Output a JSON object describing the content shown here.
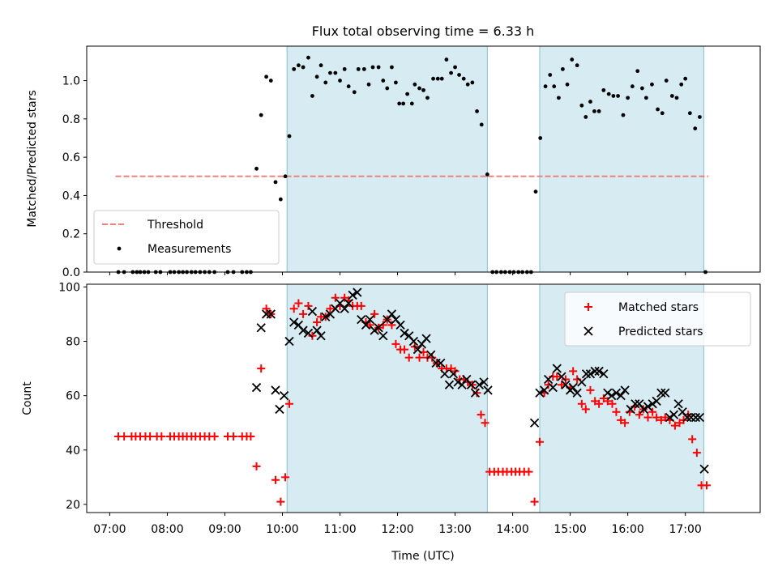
{
  "chart_data": {
    "title": "Flux total observing time = 6.33 h",
    "xlabel": "Time (UTC)",
    "x_unit": "hours UTC (decimal)",
    "xlim": [
      6.6,
      18.3
    ],
    "xticks": [
      7,
      8,
      9,
      10,
      11,
      12,
      13,
      14,
      15,
      16,
      17
    ],
    "xtick_labels": [
      "07:00",
      "08:00",
      "09:00",
      "10:00",
      "11:00",
      "12:00",
      "13:00",
      "14:00",
      "15:00",
      "16:00",
      "17:00"
    ],
    "colors": {
      "threshold": "#f08080",
      "measurements": "#000000",
      "matched": "#ff0000",
      "predicted": "#000000",
      "span_fill": "#add8e6",
      "span_edge": "#87bfd0"
    },
    "observing_windows": [
      [
        10.08,
        13.56
      ],
      [
        14.47,
        17.32
      ]
    ],
    "top": {
      "type": "scatter",
      "ylabel": "Matched/Predicted stars",
      "ylim": [
        0,
        1.18
      ],
      "yticks": [
        0.0,
        0.2,
        0.4,
        0.6,
        0.8,
        1.0
      ],
      "ytick_labels": [
        "0.0",
        "0.2",
        "0.4",
        "0.6",
        "0.8",
        "1.0"
      ],
      "threshold": {
        "label": "Threshold",
        "y": 0.5,
        "x_range": [
          7.1,
          17.4
        ]
      },
      "legend": {
        "position": "lower-left",
        "entries": [
          "Threshold",
          "Measurements"
        ]
      },
      "measurements": [
        [
          7.15,
          0
        ],
        [
          7.25,
          0
        ],
        [
          7.4,
          0
        ],
        [
          7.47,
          0
        ],
        [
          7.53,
          0
        ],
        [
          7.6,
          0
        ],
        [
          7.67,
          0
        ],
        [
          7.8,
          0
        ],
        [
          7.88,
          0
        ],
        [
          8.05,
          0
        ],
        [
          8.12,
          0
        ],
        [
          8.2,
          0
        ],
        [
          8.27,
          0
        ],
        [
          8.34,
          0
        ],
        [
          8.42,
          0
        ],
        [
          8.49,
          0
        ],
        [
          8.57,
          0
        ],
        [
          8.65,
          0
        ],
        [
          8.73,
          0
        ],
        [
          8.82,
          0
        ],
        [
          9.05,
          0
        ],
        [
          9.15,
          0
        ],
        [
          9.3,
          0
        ],
        [
          9.38,
          0
        ],
        [
          9.45,
          0
        ],
        [
          9.55,
          0.54
        ],
        [
          9.63,
          0.82
        ],
        [
          9.72,
          1.02
        ],
        [
          9.8,
          1.0
        ],
        [
          9.88,
          0.47
        ],
        [
          9.97,
          0.38
        ],
        [
          10.05,
          0.5
        ],
        [
          10.12,
          0.71
        ],
        [
          10.2,
          1.06
        ],
        [
          10.28,
          1.08
        ],
        [
          10.36,
          1.07
        ],
        [
          10.45,
          1.12
        ],
        [
          10.52,
          0.92
        ],
        [
          10.6,
          1.02
        ],
        [
          10.67,
          1.08
        ],
        [
          10.75,
          0.99
        ],
        [
          10.83,
          1.04
        ],
        [
          10.92,
          1.04
        ],
        [
          11.0,
          1.0
        ],
        [
          11.08,
          1.06
        ],
        [
          11.15,
          0.97
        ],
        [
          11.25,
          0.94
        ],
        [
          11.32,
          1.06
        ],
        [
          11.42,
          1.06
        ],
        [
          11.5,
          0.98
        ],
        [
          11.57,
          1.07
        ],
        [
          11.67,
          1.07
        ],
        [
          11.75,
          1.0
        ],
        [
          11.82,
          0.96
        ],
        [
          11.9,
          1.07
        ],
        [
          11.97,
          0.99
        ],
        [
          12.03,
          0.88
        ],
        [
          12.1,
          0.88
        ],
        [
          12.17,
          0.93
        ],
        [
          12.25,
          0.88
        ],
        [
          12.3,
          0.98
        ],
        [
          12.38,
          0.96
        ],
        [
          12.45,
          0.95
        ],
        [
          12.52,
          0.91
        ],
        [
          12.62,
          1.01
        ],
        [
          12.7,
          1.01
        ],
        [
          12.77,
          1.01
        ],
        [
          12.85,
          1.11
        ],
        [
          12.93,
          1.04
        ],
        [
          13.0,
          1.07
        ],
        [
          13.07,
          1.03
        ],
        [
          13.15,
          1.01
        ],
        [
          13.22,
          0.98
        ],
        [
          13.3,
          0.99
        ],
        [
          13.38,
          0.84
        ],
        [
          13.46,
          0.77
        ],
        [
          13.56,
          0.51
        ],
        [
          13.65,
          0
        ],
        [
          13.72,
          0
        ],
        [
          13.8,
          0
        ],
        [
          13.87,
          0
        ],
        [
          13.95,
          0
        ],
        [
          14.02,
          0
        ],
        [
          14.1,
          0
        ],
        [
          14.17,
          0
        ],
        [
          14.25,
          0
        ],
        [
          14.32,
          0
        ],
        [
          14.4,
          0.42
        ],
        [
          14.48,
          0.7
        ],
        [
          14.57,
          0.97
        ],
        [
          14.65,
          1.03
        ],
        [
          14.72,
          0.97
        ],
        [
          14.8,
          0.91
        ],
        [
          14.87,
          1.06
        ],
        [
          14.95,
          0.98
        ],
        [
          15.03,
          1.11
        ],
        [
          15.12,
          1.08
        ],
        [
          15.2,
          0.87
        ],
        [
          15.27,
          0.81
        ],
        [
          15.35,
          0.89
        ],
        [
          15.42,
          0.84
        ],
        [
          15.5,
          0.84
        ],
        [
          15.58,
          0.95
        ],
        [
          15.67,
          0.93
        ],
        [
          15.75,
          0.92
        ],
        [
          15.83,
          0.92
        ],
        [
          15.92,
          0.82
        ],
        [
          16.0,
          0.91
        ],
        [
          16.08,
          0.97
        ],
        [
          16.17,
          1.05
        ],
        [
          16.25,
          0.96
        ],
        [
          16.32,
          0.91
        ],
        [
          16.42,
          0.98
        ],
        [
          16.52,
          0.85
        ],
        [
          16.6,
          0.83
        ],
        [
          16.67,
          1.0
        ],
        [
          16.77,
          0.92
        ],
        [
          16.85,
          0.91
        ],
        [
          16.93,
          0.98
        ],
        [
          17.0,
          1.01
        ],
        [
          17.08,
          0.83
        ],
        [
          17.17,
          0.75
        ],
        [
          17.25,
          0.81
        ],
        [
          17.35,
          0
        ]
      ]
    },
    "bottom": {
      "type": "scatter",
      "ylabel": "Count",
      "ylim": [
        17,
        101
      ],
      "yticks": [
        20,
        40,
        60,
        80,
        100
      ],
      "ytick_labels": [
        "20",
        "40",
        "60",
        "80",
        "100"
      ],
      "legend": {
        "position": "top-right",
        "entries": [
          "Matched stars",
          "Predicted stars"
        ]
      },
      "matched": [
        [
          7.15,
          45
        ],
        [
          7.25,
          45
        ],
        [
          7.38,
          45
        ],
        [
          7.45,
          45
        ],
        [
          7.53,
          45
        ],
        [
          7.62,
          45
        ],
        [
          7.7,
          45
        ],
        [
          7.82,
          45
        ],
        [
          7.9,
          45
        ],
        [
          8.05,
          45
        ],
        [
          8.12,
          45
        ],
        [
          8.2,
          45
        ],
        [
          8.27,
          45
        ],
        [
          8.34,
          45
        ],
        [
          8.42,
          45
        ],
        [
          8.49,
          45
        ],
        [
          8.57,
          45
        ],
        [
          8.65,
          45
        ],
        [
          8.73,
          45
        ],
        [
          8.82,
          45
        ],
        [
          9.05,
          45
        ],
        [
          9.15,
          45
        ],
        [
          9.3,
          45
        ],
        [
          9.38,
          45
        ],
        [
          9.45,
          45
        ],
        [
          9.55,
          34
        ],
        [
          9.63,
          70
        ],
        [
          9.72,
          92
        ],
        [
          9.8,
          90
        ],
        [
          9.88,
          29
        ],
        [
          9.97,
          21
        ],
        [
          10.05,
          30
        ],
        [
          10.12,
          57
        ],
        [
          10.2,
          92
        ],
        [
          10.28,
          94
        ],
        [
          10.36,
          90
        ],
        [
          10.45,
          93
        ],
        [
          10.52,
          82
        ],
        [
          10.6,
          87
        ],
        [
          10.67,
          89
        ],
        [
          10.75,
          89
        ],
        [
          10.83,
          92
        ],
        [
          10.92,
          96
        ],
        [
          11.0,
          93
        ],
        [
          11.08,
          96
        ],
        [
          11.15,
          95
        ],
        [
          11.22,
          93
        ],
        [
          11.3,
          93
        ],
        [
          11.37,
          93
        ],
        [
          11.45,
          87
        ],
        [
          11.52,
          86
        ],
        [
          11.6,
          90
        ],
        [
          11.67,
          85
        ],
        [
          11.75,
          86
        ],
        [
          11.82,
          88
        ],
        [
          11.9,
          86
        ],
        [
          11.97,
          79
        ],
        [
          12.05,
          77
        ],
        [
          12.12,
          77
        ],
        [
          12.2,
          74
        ],
        [
          12.3,
          78
        ],
        [
          12.38,
          74
        ],
        [
          12.45,
          76
        ],
        [
          12.52,
          74
        ],
        [
          12.6,
          74
        ],
        [
          12.68,
          72
        ],
        [
          12.77,
          70
        ],
        [
          12.85,
          70
        ],
        [
          12.93,
          70
        ],
        [
          13.0,
          69
        ],
        [
          13.08,
          66
        ],
        [
          13.15,
          66
        ],
        [
          13.22,
          65
        ],
        [
          13.3,
          64
        ],
        [
          13.38,
          61
        ],
        [
          13.45,
          53
        ],
        [
          13.52,
          50
        ],
        [
          13.6,
          32
        ],
        [
          13.68,
          32
        ],
        [
          13.75,
          32
        ],
        [
          13.83,
          32
        ],
        [
          13.9,
          32
        ],
        [
          13.98,
          32
        ],
        [
          14.05,
          32
        ],
        [
          14.12,
          32
        ],
        [
          14.2,
          32
        ],
        [
          14.28,
          32
        ],
        [
          14.38,
          21
        ],
        [
          14.47,
          43
        ],
        [
          14.55,
          61
        ],
        [
          14.62,
          64
        ],
        [
          14.7,
          67
        ],
        [
          14.77,
          67
        ],
        [
          14.85,
          64
        ],
        [
          14.92,
          66
        ],
        [
          15.0,
          63
        ],
        [
          15.05,
          69
        ],
        [
          15.12,
          66
        ],
        [
          15.2,
          57
        ],
        [
          15.27,
          55
        ],
        [
          15.35,
          62
        ],
        [
          15.43,
          58
        ],
        [
          15.5,
          57
        ],
        [
          15.58,
          59
        ],
        [
          15.65,
          58
        ],
        [
          15.73,
          57
        ],
        [
          15.8,
          54
        ],
        [
          15.88,
          51
        ],
        [
          15.95,
          50
        ],
        [
          16.03,
          54
        ],
        [
          16.12,
          56
        ],
        [
          16.2,
          53
        ],
        [
          16.27,
          55
        ],
        [
          16.35,
          52
        ],
        [
          16.43,
          54
        ],
        [
          16.5,
          52
        ],
        [
          16.58,
          51
        ],
        [
          16.65,
          52
        ],
        [
          16.73,
          51
        ],
        [
          16.82,
          49
        ],
        [
          16.9,
          50
        ],
        [
          16.97,
          51
        ],
        [
          17.05,
          53
        ],
        [
          17.12,
          44
        ],
        [
          17.2,
          39
        ],
        [
          17.28,
          27
        ],
        [
          17.37,
          27
        ]
      ],
      "predicted": [
        [
          9.55,
          63
        ],
        [
          9.63,
          85
        ],
        [
          9.72,
          90
        ],
        [
          9.8,
          90
        ],
        [
          9.88,
          62
        ],
        [
          9.95,
          55
        ],
        [
          10.03,
          60
        ],
        [
          10.12,
          80
        ],
        [
          10.2,
          87
        ],
        [
          10.28,
          86
        ],
        [
          10.36,
          84
        ],
        [
          10.45,
          83
        ],
        [
          10.52,
          91
        ],
        [
          10.6,
          84
        ],
        [
          10.67,
          82
        ],
        [
          10.75,
          89
        ],
        [
          10.83,
          90
        ],
        [
          10.92,
          92
        ],
        [
          11.0,
          94
        ],
        [
          11.08,
          92
        ],
        [
          11.15,
          94
        ],
        [
          11.22,
          97
        ],
        [
          11.3,
          98
        ],
        [
          11.37,
          88
        ],
        [
          11.45,
          86
        ],
        [
          11.52,
          88
        ],
        [
          11.6,
          84
        ],
        [
          11.67,
          85
        ],
        [
          11.75,
          82
        ],
        [
          11.82,
          88
        ],
        [
          11.9,
          90
        ],
        [
          11.97,
          88
        ],
        [
          12.05,
          86
        ],
        [
          12.12,
          83
        ],
        [
          12.2,
          82
        ],
        [
          12.28,
          80
        ],
        [
          12.35,
          77
        ],
        [
          12.42,
          79
        ],
        [
          12.5,
          81
        ],
        [
          12.58,
          75
        ],
        [
          12.67,
          72
        ],
        [
          12.75,
          72
        ],
        [
          12.82,
          68
        ],
        [
          12.9,
          64
        ],
        [
          12.97,
          68
        ],
        [
          13.05,
          65
        ],
        [
          13.12,
          64
        ],
        [
          13.2,
          66
        ],
        [
          13.28,
          64
        ],
        [
          13.35,
          61
        ],
        [
          13.42,
          64
        ],
        [
          13.5,
          65
        ],
        [
          13.57,
          62
        ],
        [
          14.38,
          50
        ],
        [
          14.47,
          61
        ],
        [
          14.55,
          62
        ],
        [
          14.62,
          66
        ],
        [
          14.7,
          63
        ],
        [
          14.77,
          70
        ],
        [
          14.85,
          67
        ],
        [
          14.92,
          64
        ],
        [
          15.0,
          62
        ],
        [
          15.05,
          63
        ],
        [
          15.12,
          61
        ],
        [
          15.2,
          65
        ],
        [
          15.28,
          68
        ],
        [
          15.35,
          68
        ],
        [
          15.43,
          69
        ],
        [
          15.5,
          69
        ],
        [
          15.58,
          68
        ],
        [
          15.65,
          61
        ],
        [
          15.72,
          60
        ],
        [
          15.8,
          61
        ],
        [
          15.88,
          60
        ],
        [
          15.95,
          62
        ],
        [
          16.05,
          55
        ],
        [
          16.13,
          57
        ],
        [
          16.2,
          57
        ],
        [
          16.28,
          55
        ],
        [
          16.35,
          56
        ],
        [
          16.43,
          57
        ],
        [
          16.5,
          58
        ],
        [
          16.58,
          61
        ],
        [
          16.65,
          61
        ],
        [
          16.73,
          52
        ],
        [
          16.8,
          53
        ],
        [
          16.88,
          57
        ],
        [
          16.95,
          54
        ],
        [
          17.03,
          52
        ],
        [
          17.1,
          52
        ],
        [
          17.18,
          52
        ],
        [
          17.25,
          52
        ],
        [
          17.33,
          33
        ]
      ]
    }
  }
}
